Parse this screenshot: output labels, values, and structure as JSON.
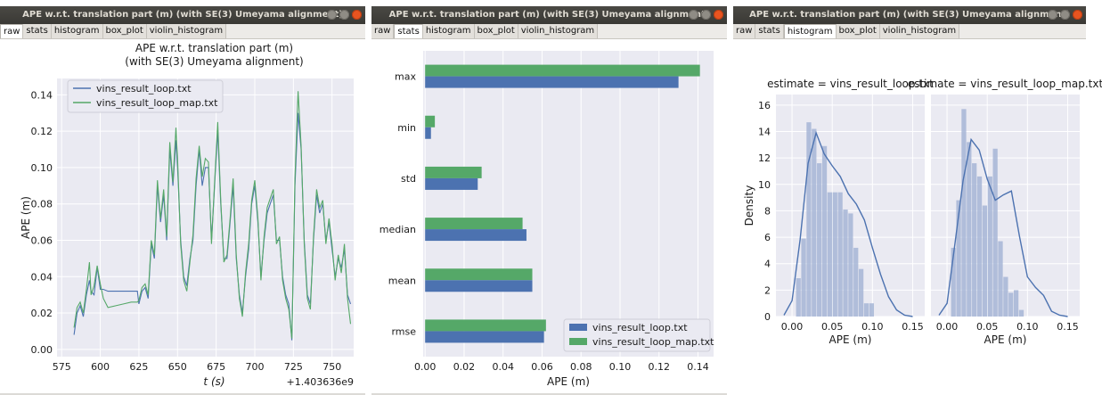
{
  "window_title": "APE w.r.t. translation part (m) (with SE(3) Umeyama alignment)",
  "tabs": [
    "raw",
    "stats",
    "histogram",
    "box_plot",
    "violin_histogram"
  ],
  "colors": {
    "blue": "#4c72b0",
    "green": "#55a868",
    "axes_bg": "#eaeaf2",
    "hist": "#a6b5d6"
  },
  "icons": [
    "minimize-icon",
    "maximize-icon",
    "close-icon"
  ],
  "chart_data": [
    {
      "type": "line",
      "title": "APE w.r.t. translation part (m)",
      "subtitle": "(with SE(3) Umeyama alignment)",
      "xlabel": "t (s)",
      "ylabel": "APE (m)",
      "x_offset_label": "+1.403636e9",
      "xticks": [
        "575",
        "600",
        "625",
        "650",
        "675",
        "700",
        "725",
        "750"
      ],
      "yticks": [
        "0.00",
        "0.02",
        "0.04",
        "0.06",
        "0.08",
        "0.10",
        "0.12",
        "0.14"
      ],
      "xlim": [
        572,
        764
      ],
      "ylim": [
        -0.004,
        0.149
      ],
      "legend": "top-left",
      "series": [
        {
          "name": "vins_result_loop.txt",
          "color": "#4c72b0",
          "x": [
            583,
            585,
            587,
            589,
            591,
            593,
            594,
            596,
            598,
            600,
            602,
            605,
            610,
            615,
            620,
            624,
            625,
            627,
            629,
            631,
            633,
            635,
            637,
            639,
            641,
            643,
            645,
            647,
            649,
            650,
            652,
            654,
            656,
            658,
            660,
            662,
            664,
            666,
            668,
            670,
            672,
            674,
            676,
            678,
            680,
            682,
            684,
            686,
            688,
            690,
            692,
            694,
            696,
            698,
            700,
            702,
            704,
            706,
            708,
            710,
            712,
            714,
            716,
            718,
            720,
            722,
            724,
            726,
            728,
            730,
            732,
            734,
            736,
            738,
            740,
            742,
            744,
            746,
            748,
            750,
            752,
            754,
            756,
            758,
            760,
            762
          ],
          "y": [
            0.008,
            0.02,
            0.024,
            0.018,
            0.03,
            0.038,
            0.032,
            0.03,
            0.045,
            0.033,
            0.033,
            0.032,
            0.032,
            0.032,
            0.032,
            0.032,
            0.025,
            0.032,
            0.034,
            0.028,
            0.058,
            0.05,
            0.09,
            0.07,
            0.085,
            0.06,
            0.11,
            0.09,
            0.115,
            0.1,
            0.06,
            0.04,
            0.035,
            0.05,
            0.06,
            0.09,
            0.11,
            0.09,
            0.1,
            0.1,
            0.06,
            0.09,
            0.12,
            0.08,
            0.05,
            0.05,
            0.07,
            0.09,
            0.05,
            0.03,
            0.02,
            0.04,
            0.055,
            0.08,
            0.09,
            0.07,
            0.04,
            0.06,
            0.075,
            0.08,
            0.085,
            0.06,
            0.06,
            0.04,
            0.03,
            0.025,
            0.005,
            0.09,
            0.13,
            0.11,
            0.06,
            0.03,
            0.025,
            0.06,
            0.085,
            0.075,
            0.08,
            0.06,
            0.07,
            0.055,
            0.04,
            0.05,
            0.045,
            0.055,
            0.03,
            0.025
          ]
        },
        {
          "name": "vins_result_loop_map.txt",
          "color": "#55a868",
          "x": [
            583,
            585,
            587,
            589,
            591,
            593,
            594,
            596,
            598,
            600,
            602,
            605,
            610,
            615,
            620,
            624,
            625,
            627,
            629,
            631,
            633,
            635,
            637,
            639,
            641,
            643,
            645,
            647,
            649,
            650,
            652,
            654,
            656,
            658,
            660,
            662,
            664,
            666,
            668,
            670,
            672,
            674,
            676,
            678,
            680,
            682,
            684,
            686,
            688,
            690,
            692,
            694,
            696,
            698,
            700,
            702,
            704,
            706,
            708,
            710,
            712,
            714,
            716,
            718,
            720,
            722,
            724,
            726,
            728,
            730,
            732,
            734,
            736,
            738,
            740,
            742,
            744,
            746,
            748,
            750,
            752,
            754,
            756,
            758,
            760,
            762
          ],
          "y": [
            0.012,
            0.023,
            0.026,
            0.02,
            0.033,
            0.048,
            0.03,
            0.035,
            0.046,
            0.036,
            0.028,
            0.023,
            0.024,
            0.025,
            0.026,
            0.026,
            0.027,
            0.034,
            0.036,
            0.03,
            0.06,
            0.052,
            0.093,
            0.072,
            0.088,
            0.062,
            0.114,
            0.092,
            0.122,
            0.105,
            0.058,
            0.038,
            0.032,
            0.048,
            0.063,
            0.094,
            0.112,
            0.095,
            0.105,
            0.103,
            0.058,
            0.092,
            0.125,
            0.082,
            0.048,
            0.052,
            0.072,
            0.094,
            0.052,
            0.028,
            0.018,
            0.042,
            0.058,
            0.082,
            0.093,
            0.072,
            0.038,
            0.062,
            0.078,
            0.083,
            0.088,
            0.058,
            0.062,
            0.038,
            0.028,
            0.022,
            0.006,
            0.094,
            0.142,
            0.112,
            0.058,
            0.028,
            0.022,
            0.062,
            0.088,
            0.078,
            0.082,
            0.058,
            0.072,
            0.058,
            0.038,
            0.052,
            0.042,
            0.058,
            0.028,
            0.014
          ]
        }
      ]
    },
    {
      "type": "bar",
      "orientation": "horizontal",
      "xlabel": "APE (m)",
      "xticks": [
        "0.00",
        "0.02",
        "0.04",
        "0.06",
        "0.08",
        "0.10",
        "0.12",
        "0.14"
      ],
      "xlim": [
        -0.001,
        0.148
      ],
      "categories": [
        "max",
        "min",
        "std",
        "median",
        "mean",
        "rmse"
      ],
      "legend": "bottom-right",
      "series": [
        {
          "name": "vins_result_loop.txt",
          "color": "#4c72b0",
          "values": [
            0.13,
            0.003,
            0.027,
            0.052,
            0.055,
            0.061
          ]
        },
        {
          "name": "vins_result_loop_map.txt",
          "color": "#55a868",
          "values": [
            0.141,
            0.005,
            0.029,
            0.05,
            0.055,
            0.062
          ]
        }
      ]
    },
    {
      "type": "histogram",
      "title": "estimate = vins_result_loop.txt",
      "xlabel": "APE (m)",
      "ylabel": "Density",
      "xticks": [
        "0.00",
        "0.05",
        "0.10",
        "0.15"
      ],
      "yticks": [
        "0",
        "2",
        "4",
        "6",
        "8",
        "10",
        "12",
        "14",
        "16"
      ],
      "xlim": [
        -0.02,
        0.165
      ],
      "ylim": [
        0,
        16.8
      ],
      "bin_start": 0.005,
      "bin_width": 0.0065,
      "densities": [
        2.9,
        5.9,
        14.7,
        14.2,
        11.6,
        12.9,
        9.4,
        9.4,
        9.4,
        8.1,
        7.8,
        5.2,
        3.6,
        1.0,
        1.0
      ],
      "kde_x": [
        -0.01,
        0.0,
        0.01,
        0.02,
        0.03,
        0.04,
        0.05,
        0.06,
        0.07,
        0.08,
        0.09,
        0.1,
        0.11,
        0.12,
        0.13,
        0.14,
        0.15
      ],
      "kde_y": [
        0.1,
        1.2,
        5.8,
        11.6,
        13.9,
        12.3,
        11.4,
        10.6,
        9.3,
        8.5,
        7.3,
        5.2,
        3.2,
        1.5,
        0.5,
        0.1,
        0.0
      ]
    },
    {
      "type": "histogram",
      "title": "estimate = vins_result_loop_map.txt",
      "xlabel": "APE (m)",
      "xticks": [
        "0.00",
        "0.05",
        "0.10",
        "0.15"
      ],
      "xlim": [
        -0.02,
        0.165
      ],
      "ylim": [
        0,
        16.8
      ],
      "bin_start": 0.005,
      "bin_width": 0.0065,
      "densities": [
        5.2,
        8.8,
        15.7,
        13.2,
        11.6,
        10.6,
        8.4,
        10.6,
        12.7,
        5.7,
        3.0,
        1.8,
        2.0,
        0.5
      ],
      "kde_x": [
        -0.01,
        0.0,
        0.01,
        0.02,
        0.03,
        0.04,
        0.05,
        0.06,
        0.07,
        0.08,
        0.09,
        0.1,
        0.11,
        0.12,
        0.13,
        0.14,
        0.15
      ],
      "kde_y": [
        0.1,
        1.0,
        5.6,
        10.3,
        13.4,
        12.6,
        10.4,
        8.8,
        9.2,
        9.5,
        6.1,
        3.0,
        2.2,
        1.6,
        0.4,
        0.1,
        0.0
      ]
    }
  ]
}
